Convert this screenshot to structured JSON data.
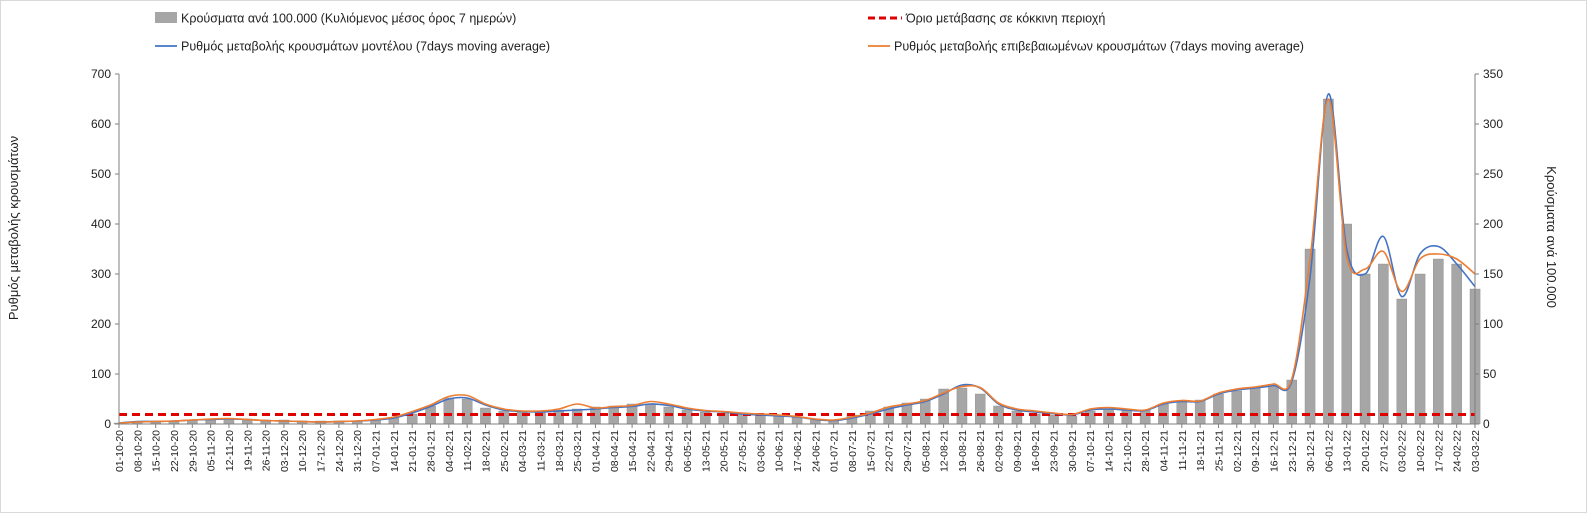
{
  "chart_data": {
    "type": "bar",
    "legend": [
      {
        "key": "cases",
        "label": "Κρούσματα ανά 100.000 (Κυλιόμενος μέσος όρος 7 ημερών)",
        "kind": "bar",
        "color": "#a6a6a6"
      },
      {
        "key": "threshold",
        "label": "Όριο μετάβασης σε κόκκινη περιοχή",
        "kind": "dashed",
        "color": "#e00000"
      },
      {
        "key": "model",
        "label": "Ρυθμός μεταβολής κρουσμάτων μοντέλου (7days moving average)",
        "kind": "line",
        "color": "#4472c4"
      },
      {
        "key": "confirmed",
        "label": "Ρυθμός μεταβολής επιβεβαιωμένων κρουσμάτων (7days moving average)",
        "kind": "line",
        "color": "#ed7d31"
      }
    ],
    "ylabel_left": "Ρυθμός μεταβολής κρουσμάτων",
    "ylabel_right": "Κρούσματα ανά 100.000",
    "ylim_left": [
      0,
      700
    ],
    "ylim_right": [
      0,
      350
    ],
    "yticks_left": [
      "0",
      "100",
      "200",
      "300",
      "400",
      "500",
      "600",
      "700"
    ],
    "yticks_right": [
      "0",
      "50",
      "100",
      "150",
      "200",
      "250",
      "300",
      "350"
    ],
    "threshold_left": 19,
    "categories": [
      "01-10-20",
      "08-10-20",
      "15-10-20",
      "22-10-20",
      "29-10-20",
      "05-11-20",
      "12-11-20",
      "19-11-20",
      "26-11-20",
      "03-12-20",
      "10-12-20",
      "17-12-20",
      "24-12-20",
      "31-12-20",
      "07-01-21",
      "14-01-21",
      "21-01-21",
      "28-01-21",
      "04-02-21",
      "11-02-21",
      "18-02-21",
      "25-02-21",
      "04-03-21",
      "11-03-21",
      "18-03-21",
      "25-03-21",
      "01-04-21",
      "08-04-21",
      "15-04-21",
      "22-04-21",
      "29-04-21",
      "06-05-21",
      "13-05-21",
      "20-05-21",
      "27-05-21",
      "03-06-21",
      "10-06-21",
      "17-06-21",
      "24-06-21",
      "01-07-21",
      "08-07-21",
      "15-07-21",
      "22-07-21",
      "29-07-21",
      "05-08-21",
      "12-08-21",
      "19-08-21",
      "26-08-21",
      "02-09-21",
      "09-09-21",
      "16-09-21",
      "23-09-21",
      "30-09-21",
      "07-10-21",
      "14-10-21",
      "21-10-21",
      "28-10-21",
      "04-11-21",
      "11-11-21",
      "18-11-21",
      "25-11-21",
      "02-12-21",
      "09-12-21",
      "16-12-21",
      "23-12-21",
      "30-12-21",
      "06-01-22",
      "13-01-22",
      "20-01-22",
      "27-01-22",
      "03-02-22",
      "10-02-22",
      "17-02-22",
      "24-02-22",
      "03-03-22"
    ],
    "series": [
      {
        "name": "Κρούσματα ανά 100.000",
        "axis": "right",
        "values": [
          1,
          2,
          3,
          3,
          4,
          4,
          5,
          5,
          4,
          4,
          3,
          3,
          3,
          3,
          4,
          6,
          10,
          18,
          26,
          25,
          16,
          13,
          12,
          12,
          14,
          15,
          17,
          18,
          20,
          20,
          17,
          14,
          12,
          11,
          10,
          9,
          8,
          7,
          5,
          4,
          9,
          13,
          17,
          21,
          25,
          35,
          36,
          30,
          18,
          13,
          10,
          9,
          8,
          13,
          15,
          14,
          14,
          20,
          22,
          24,
          30,
          33,
          37,
          38,
          44,
          175,
          325,
          200,
          150,
          160,
          125,
          150,
          165,
          160,
          135
        ]
      },
      {
        "name": "Ρυθμός μεταβολής κρουσμάτων μοντέλου (7days moving average)",
        "axis": "left",
        "values": [
          2,
          5,
          5,
          6,
          8,
          9,
          10,
          9,
          7,
          6,
          5,
          4,
          5,
          6,
          8,
          12,
          22,
          35,
          50,
          52,
          38,
          28,
          25,
          24,
          26,
          28,
          30,
          33,
          35,
          40,
          37,
          30,
          26,
          24,
          20,
          18,
          16,
          14,
          9,
          7,
          12,
          20,
          30,
          38,
          45,
          60,
          78,
          72,
          40,
          28,
          24,
          21,
          18,
          28,
          30,
          28,
          27,
          40,
          45,
          45,
          60,
          68,
          72,
          77,
          85,
          295,
          660,
          350,
          300,
          375,
          255,
          340,
          355,
          320,
          275
        ]
      },
      {
        "name": "Ρυθμός μεταβολής επιβεβαιωμένων κρουσμάτων (7days moving average)",
        "axis": "left",
        "values": [
          2,
          4,
          5,
          6,
          8,
          10,
          11,
          9,
          7,
          6,
          5,
          4,
          5,
          6,
          9,
          14,
          25,
          38,
          55,
          57,
          40,
          30,
          26,
          26,
          30,
          40,
          32,
          35,
          37,
          45,
          40,
          32,
          27,
          25,
          22,
          20,
          18,
          15,
          10,
          8,
          14,
          22,
          34,
          40,
          47,
          62,
          75,
          73,
          42,
          30,
          26,
          22,
          19,
          30,
          33,
          30,
          28,
          42,
          47,
          46,
          62,
          70,
          74,
          80,
          90,
          330,
          650,
          335,
          310,
          345,
          265,
          330,
          340,
          330,
          300
        ]
      }
    ]
  }
}
